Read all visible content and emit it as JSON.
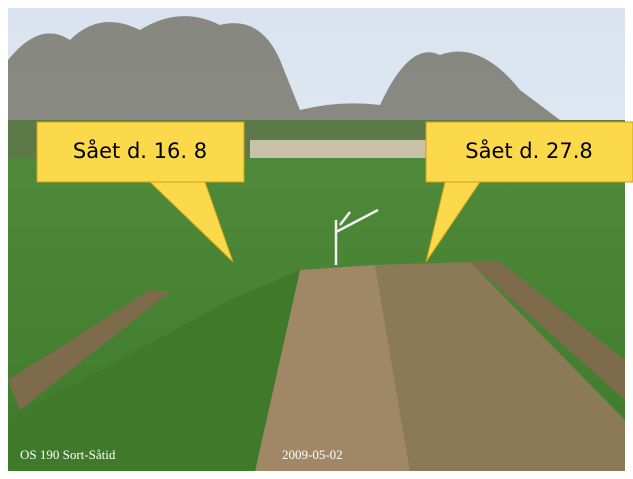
{
  "callouts": [
    {
      "label": "Sået d. 16. 8"
    },
    {
      "label": "Sået d. 27.8"
    }
  ],
  "caption": {
    "site": "OS 190 Sort-Såtid",
    "date": "2009-05-02"
  }
}
